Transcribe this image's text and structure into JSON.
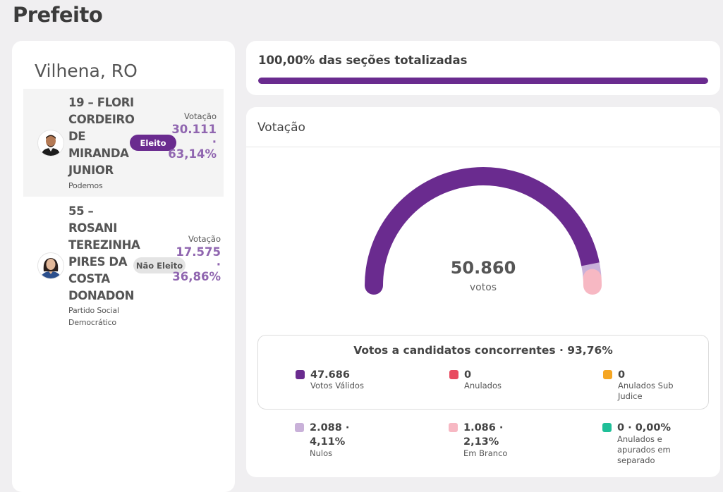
{
  "page": {
    "title": "Prefeito"
  },
  "city": "Vilhena, RO",
  "candidates": [
    {
      "name": "19 – FLORI CORDEIRO DE MIRANDA JUNIOR",
      "name_lines": [
        "19 – FLORI",
        "CORDEIRO",
        "DE",
        "MIRANDA",
        "JUNIOR"
      ],
      "party": "Podemos",
      "status": "Eleito",
      "vote_caption": "Votação",
      "votes": "30.111",
      "separator": "·",
      "percent": "63,14%",
      "avatar_icon": "man-avatar-icon"
    },
    {
      "name": "55 – ROSANI TEREZINHA PIRES DA COSTA DONADON",
      "name_lines": [
        "55 –",
        "ROSANI",
        "TEREZINHA",
        "PIRES DA",
        "COSTA",
        "DONADON"
      ],
      "party": "Partido Social Democrático",
      "party_lines": [
        "Partido Social",
        "Democrático"
      ],
      "status": "Não Eleito",
      "vote_caption": "Votação",
      "votes": "17.575",
      "separator": "·",
      "percent": "36,86%",
      "avatar_icon": "woman-avatar-icon"
    }
  ],
  "progress": {
    "label": "100,00% das seções totalizadas",
    "value": 1.0
  },
  "votacao": {
    "heading": "Votação",
    "total": "50.860",
    "total_caption": "votos",
    "gauge_fractions": {
      "validos": 0.9376,
      "nulos": 0.0411,
      "brancos": 0.0213
    },
    "concorrentes_title": "Votos a candidatos concorrentes · 93,76%",
    "legend_top": [
      {
        "value": "47.686",
        "label": "Votos Válidos",
        "color": "#6a2b8f"
      },
      {
        "value": "0",
        "label": "Anulados",
        "color": "#e84a5f"
      },
      {
        "value": "0",
        "label": "Anulados Sub Judice",
        "label_lines": [
          "Anulados Sub",
          "Judice"
        ],
        "color": "#f5a623"
      }
    ],
    "legend_bottom": [
      {
        "value_lines": [
          "2.088 ·",
          "4,11%"
        ],
        "label": "Nulos",
        "color": "#c9b1d9"
      },
      {
        "value_lines": [
          "1.086 ·",
          "2,13%"
        ],
        "label": "Em Branco",
        "color": "#f7b8c3"
      },
      {
        "value_lines": [
          "0 · 0,00%"
        ],
        "label": "Anulados e apurados em separado",
        "label_lines": [
          "Anulados e",
          "apurados em",
          "separado"
        ],
        "color": "#1fbf98"
      }
    ]
  },
  "colors": {
    "accent": "#6a2b8f",
    "accent_light": "#9066b0"
  }
}
